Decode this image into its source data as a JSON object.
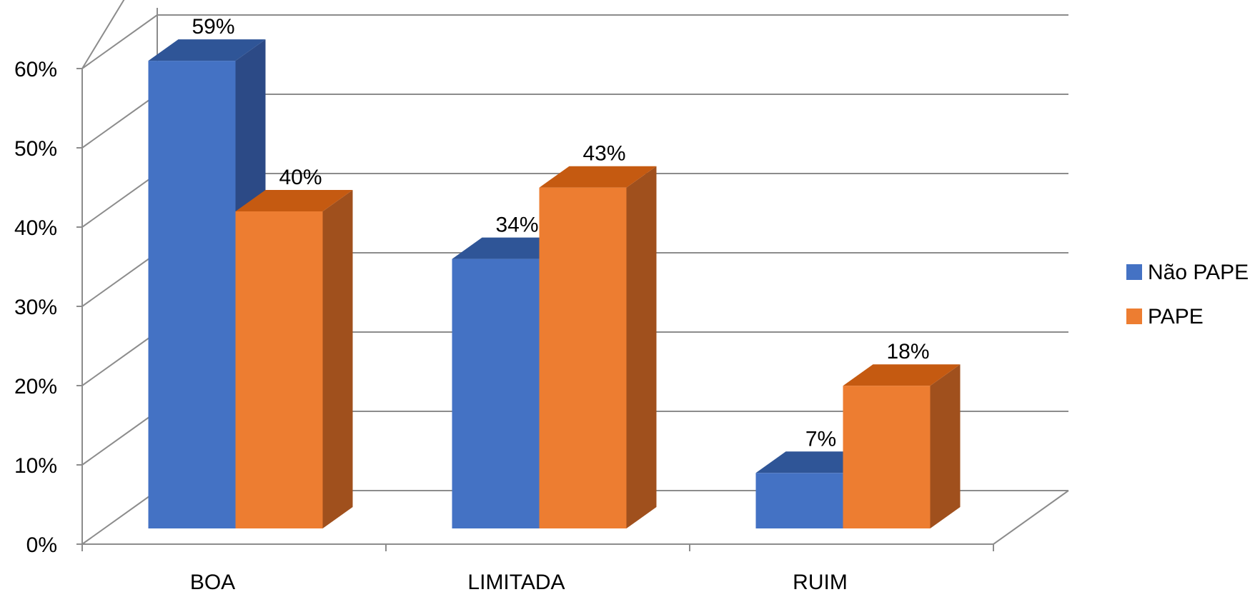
{
  "chart_data": {
    "type": "bar",
    "style": "3d-clustered-column",
    "categories": [
      "BOA",
      "LIMITADA",
      "RUIM"
    ],
    "series": [
      {
        "name": "Não PAPE",
        "values": [
          59,
          34,
          7
        ],
        "labels": [
          "59%",
          "34%",
          "7%"
        ],
        "color": "#4472C4",
        "top_color": "#2F5597",
        "side_color": "#2C4A86"
      },
      {
        "name": "PAPE",
        "values": [
          40,
          43,
          18
        ],
        "labels": [
          "40%",
          "43%",
          "18%"
        ],
        "color": "#ED7D31",
        "top_color": "#C55A11",
        "side_color": "#A0501D"
      }
    ],
    "y_ticks": [
      "0%",
      "10%",
      "20%",
      "30%",
      "40%",
      "50%",
      "60%"
    ],
    "ylim": [
      0,
      60
    ],
    "y_unit": "%",
    "grid": true,
    "legend_position": "right",
    "title": "",
    "xlabel": "",
    "ylabel": ""
  }
}
